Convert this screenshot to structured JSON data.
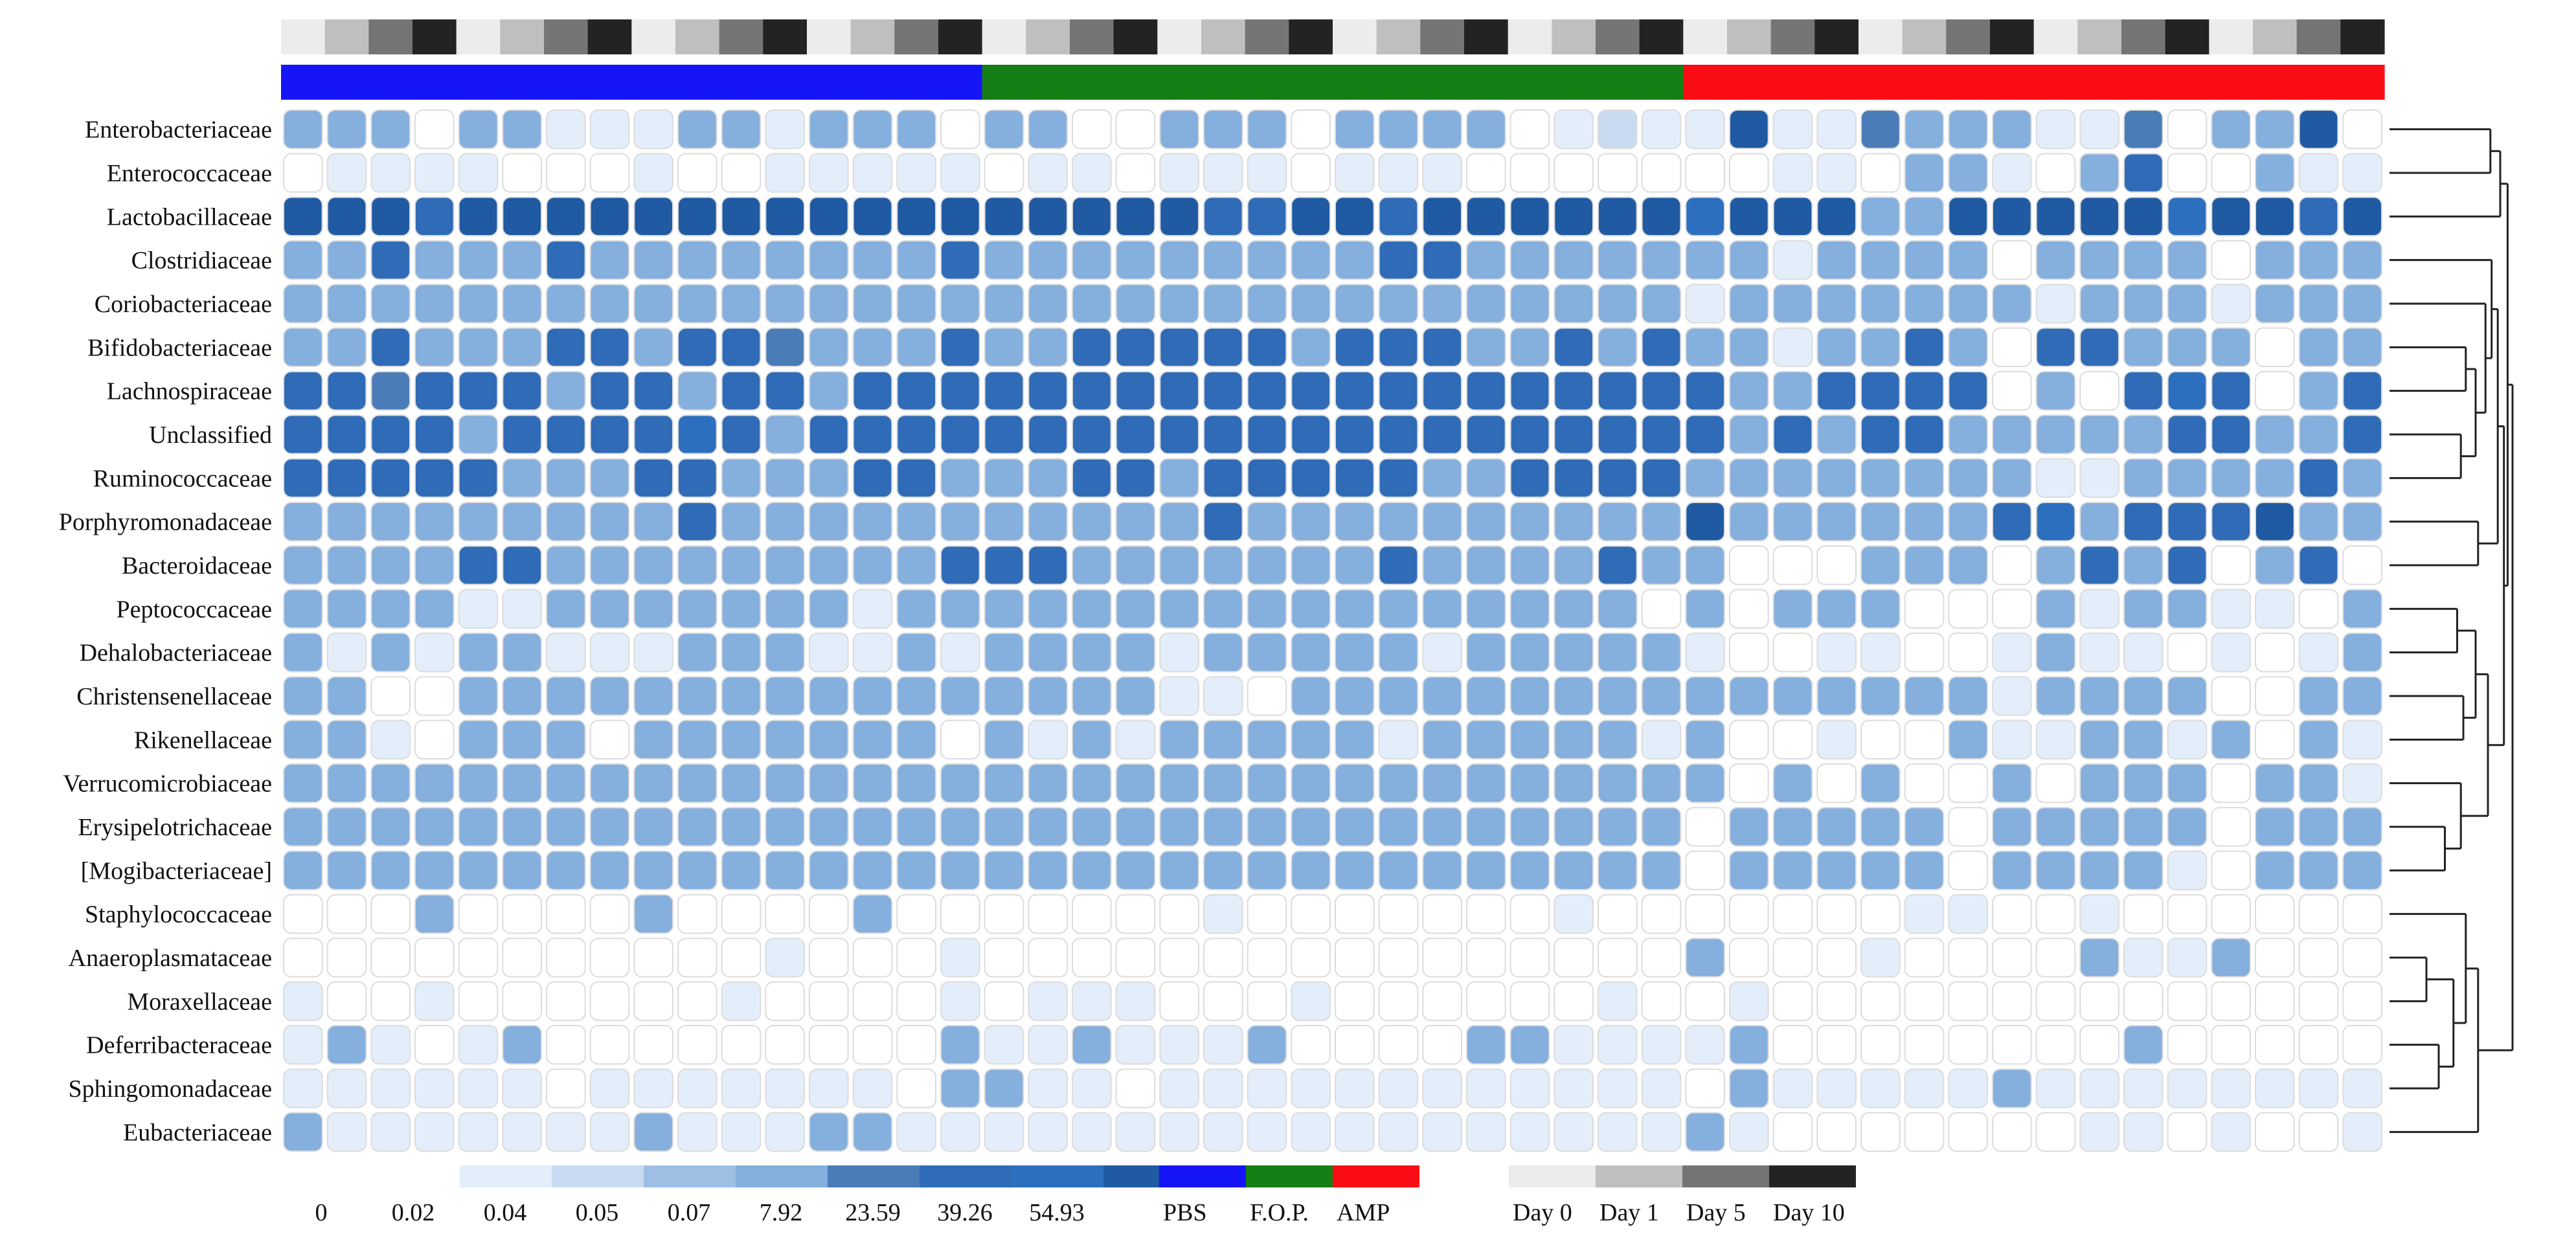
{
  "chart_data": {
    "type": "heatmap",
    "title": "",
    "rows": [
      "Enterobacteriaceae",
      "Enterococcaceae",
      "Lactobacillaceae",
      "Clostridiaceae",
      "Coriobacteriaceae",
      "Bifidobacteriaceae",
      "Lachnospiraceae",
      "Unclassified",
      "Ruminococcaceae",
      "Porphyromonadaceae",
      "Bacteroidaceae",
      "Peptococcaceae",
      "Dehalobacteriaceae",
      "Christensenellaceae",
      "Rikenellaceae",
      "Verrucomicrobiaceae",
      "Erysipelotrichaceae",
      "[Mogibacteriaceae]",
      "Staphylococcaceae",
      "Anaeroplasmataceae",
      "Moraxellaceae",
      "Deferribacteraceae",
      "Sphingomonadaceae",
      "Eubacteriaceae"
    ],
    "groups": [
      {
        "name": "PBS",
        "color": "#1515f7"
      },
      {
        "name": "F.O.P.",
        "color": "#157f15"
      },
      {
        "name": "AMP",
        "color": "#fb0d16"
      }
    ],
    "column_groups": [
      "PBS",
      "PBS",
      "PBS",
      "PBS",
      "PBS",
      "PBS",
      "PBS",
      "PBS",
      "PBS",
      "PBS",
      "PBS",
      "PBS",
      "PBS",
      "PBS",
      "PBS",
      "PBS",
      "F.O.P.",
      "F.O.P.",
      "F.O.P.",
      "F.O.P.",
      "F.O.P.",
      "F.O.P.",
      "F.O.P.",
      "F.O.P.",
      "F.O.P.",
      "F.O.P.",
      "F.O.P.",
      "F.O.P.",
      "F.O.P.",
      "F.O.P.",
      "F.O.P.",
      "F.O.P.",
      "AMP",
      "AMP",
      "AMP",
      "AMP",
      "AMP",
      "AMP",
      "AMP",
      "AMP",
      "AMP",
      "AMP",
      "AMP",
      "AMP",
      "AMP",
      "AMP",
      "AMP",
      "AMP"
    ],
    "days": [
      {
        "name": "Day 0",
        "color": "#ececec"
      },
      {
        "name": "Day 1",
        "color": "#bfbfbf"
      },
      {
        "name": "Day 5",
        "color": "#757575"
      },
      {
        "name": "Day 10",
        "color": "#232323"
      }
    ],
    "column_days": [
      0,
      1,
      2,
      3,
      0,
      1,
      2,
      3,
      0,
      1,
      2,
      3,
      0,
      1,
      2,
      3,
      0,
      1,
      2,
      3,
      0,
      1,
      2,
      3,
      0,
      1,
      2,
      3,
      0,
      1,
      2,
      3,
      0,
      1,
      2,
      3,
      0,
      1,
      2,
      3,
      0,
      1,
      2,
      3,
      0,
      1,
      2,
      3
    ],
    "scale": {
      "labels": [
        "0",
        "0.02",
        "0.04",
        "0.05",
        "0.07",
        "7.92",
        "23.59",
        "39.26",
        "54.93"
      ],
      "colors": [
        "#ffffff",
        "#e3eefa",
        "#c8dbf1",
        "#9dbfe4",
        "#85afdd",
        "#4a7cb7",
        "#2f6bb7",
        "#2c6fbf",
        "#1f5aa3"
      ]
    },
    "level_colors": [
      "#ffffff",
      "#e3eefa",
      "#c8dbf1",
      "#9dbfe4",
      "#85afdd",
      "#4a7cb7",
      "#2f6bb7",
      "#2c6fbf",
      "#1f5aa3"
    ],
    "values": [
      "444044111441444044004440444401211811544411504480",
      "011110001001111101101110111000000011044104600411",
      "888688888888888888888668868888887888448888878868",
      "446444644444444644444444466444444414444044440444",
      "444444444444444444444444444444441444444414441444",
      "446444664665444644666664666446464414464066444044",
      "665666466466466666666666666666666446666040676046",
      "666646666764666666666666666666666464664444466446",
      "666664446644466444664666664466664444444411444464",
      "444444444644444444444644444444448444444674666844",
      "444466444444444666444444464444644000444046460460",
      "444411444444414444444444444444404044400041441104",
      "414144111444114144441444441444441001100141101014",
      "440044444444444444441104444444444444444144440044",
      "441044404444444041414444414444414001004114414041",
      "444444444444444444444444444444444040400404440441",
      "444444444444444444444444444444440444440444440444",
      "444444444444444444444444444444440444440444410444",
      "000400004000040000000100000001000000011001000000",
      "000000000001000100000000000000004000100004114000",
      "100100000010000101110001000000100100000000000000",
      "141014000000000411411140000441111400000000400000",
      "111111011111110441101111111111110411111411111111",
      "411111114111441111111111111111114100000001101001"
    ],
    "dendrogram": [
      [
        0,
        1,
        -1,
        2,
        "0.80"
      ],
      [
        2,
        3,
        -1,
        1,
        "0.88"
      ],
      [
        4,
        5,
        -1,
        3,
        "0.91"
      ],
      [
        6,
        7,
        -1,
        4,
        "0.79"
      ],
      [
        8,
        9,
        -1,
        5,
        "0.90"
      ],
      [
        10,
        11,
        -1,
        6,
        "0.86"
      ],
      [
        12,
        13,
        -1,
        7,
        "0.87"
      ],
      [
        14,
        15,
        -1,
        8,
        "0.72"
      ],
      [
        16,
        17,
        -1,
        9,
        "0.64"
      ],
      [
        18,
        19,
        -1,
        10,
        "0.61"
      ],
      [
        20,
        21,
        -1,
        11,
        "0.59"
      ],
      [
        22,
        23,
        -1,
        12,
        "0.51"
      ],
      [
        24,
        25,
        -1,
        13,
        "0.47"
      ],
      [
        26,
        27,
        -1,
        14,
        "0.33"
      ],
      [
        28,
        29,
        -1,
        15,
        "0.18"
      ],
      [
        30,
        31,
        -1,
        16,
        "0.06"
      ],
      [
        32,
        33,
        -1,
        17,
        "0.00"
      ],
      [
        34,
        35,
        -1,
        18,
        "0.00"
      ],
      [
        36,
        37,
        -1,
        19,
        "0.00"
      ],
      [
        38,
        39,
        -1,
        20,
        "0.00"
      ],
      [
        40,
        41,
        -1,
        21,
        "0.00"
      ],
      [
        42,
        43,
        -1,
        22,
        "0.00"
      ],
      [
        44,
        45,
        -1,
        23,
        "0.00"
      ]
    ]
  }
}
